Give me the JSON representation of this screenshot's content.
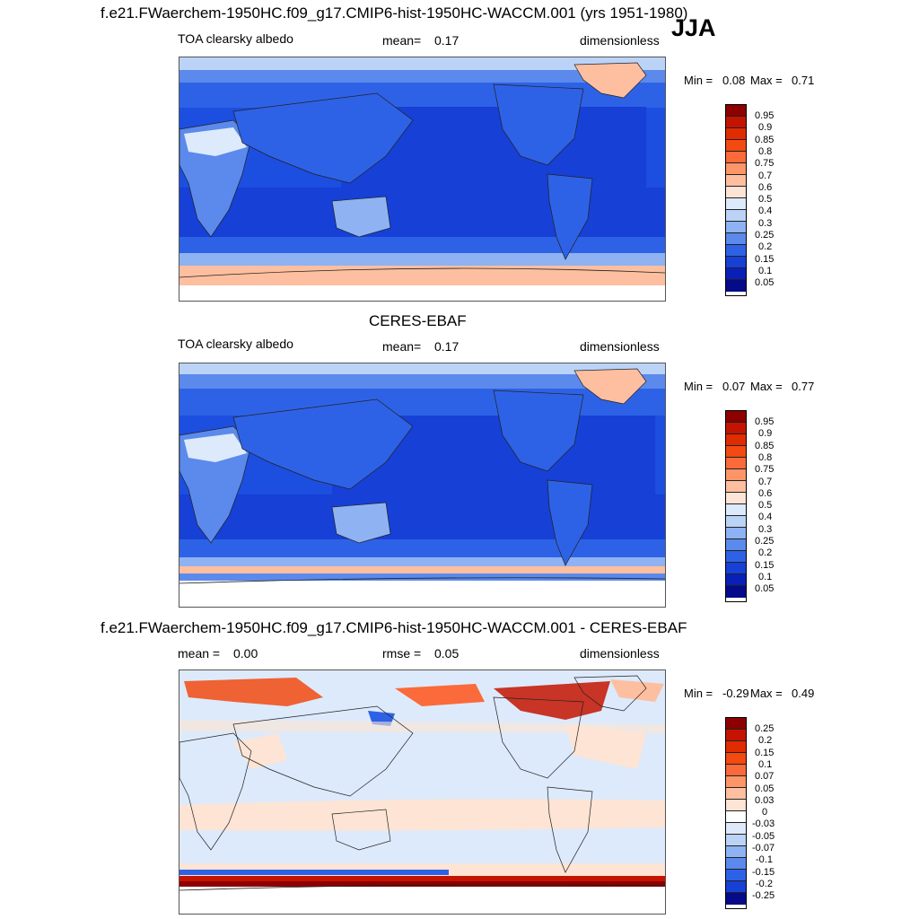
{
  "header": {
    "case_title": "f.e21.FWaerchem-1950HC.f09_g17.CMIP6-hist-1950HC-WACCM.001 (yrs 1951-1980)",
    "season": "JJA"
  },
  "panels": [
    {
      "variable": "TOA clearsky albedo",
      "stat_label": "mean=",
      "stat_value": "0.17",
      "units": "dimensionless",
      "min_label": "Min =",
      "min_value": "0.08",
      "max_label": "Max =",
      "max_value": "0.71",
      "levels": [
        "0.95",
        "0.9",
        "0.85",
        "0.8",
        "0.75",
        "0.7",
        "0.6",
        "0.5",
        "0.4",
        "0.3",
        "0.25",
        "0.2",
        "0.15",
        "0.1",
        "0.05"
      ],
      "colors": [
        "#8c0000",
        "#c41400",
        "#e02c00",
        "#f24a10",
        "#fb6a3a",
        "#fc9668",
        "#fdbfa0",
        "#fde4d4",
        "#ddeafb",
        "#bcd3f8",
        "#8fb2f2",
        "#5b8aec",
        "#2e62e6",
        "#1640d6",
        "#0820b8",
        "#040a88"
      ]
    },
    {
      "panel_title": "CERES-EBAF",
      "variable": "TOA clearsky albedo",
      "stat_label": "mean=",
      "stat_value": "0.17",
      "units": "dimensionless",
      "min_label": "Min =",
      "min_value": "0.07",
      "max_label": "Max =",
      "max_value": "0.77",
      "levels": [
        "0.95",
        "0.9",
        "0.85",
        "0.8",
        "0.75",
        "0.7",
        "0.6",
        "0.5",
        "0.4",
        "0.3",
        "0.25",
        "0.2",
        "0.15",
        "0.1",
        "0.05"
      ],
      "colors": [
        "#8c0000",
        "#c41400",
        "#e02c00",
        "#f24a10",
        "#fb6a3a",
        "#fc9668",
        "#fdbfa0",
        "#fde4d4",
        "#ddeafb",
        "#bcd3f8",
        "#8fb2f2",
        "#5b8aec",
        "#2e62e6",
        "#1640d6",
        "#0820b8",
        "#040a88"
      ]
    },
    {
      "panel_title": "f.e21.FWaerchem-1950HC.f09_g17.CMIP6-hist-1950HC-WACCM.001 - CERES-EBAF",
      "mean_label": "mean =",
      "mean_value": "0.00",
      "stat_label": "rmse =",
      "stat_value": "0.05",
      "units": "dimensionless",
      "min_label": "Min =",
      "min_value": "-0.29",
      "max_label": "Max =",
      "max_value": "0.49",
      "levels": [
        "0.25",
        "0.2",
        "0.15",
        "0.1",
        "0.07",
        "0.05",
        "0.03",
        "0",
        "-0.03",
        "-0.05",
        "-0.07",
        "-0.1",
        "-0.15",
        "-0.2",
        "-0.25"
      ],
      "colors": [
        "#8c0000",
        "#c41400",
        "#e02c00",
        "#f24a10",
        "#fb6a3a",
        "#fc9668",
        "#fdbfa0",
        "#fde4d4",
        "#ffffff",
        "#ddeafb",
        "#bcd3f8",
        "#8fb2f2",
        "#5b8aec",
        "#2e62e6",
        "#1640d6",
        "#040a88"
      ]
    }
  ]
}
